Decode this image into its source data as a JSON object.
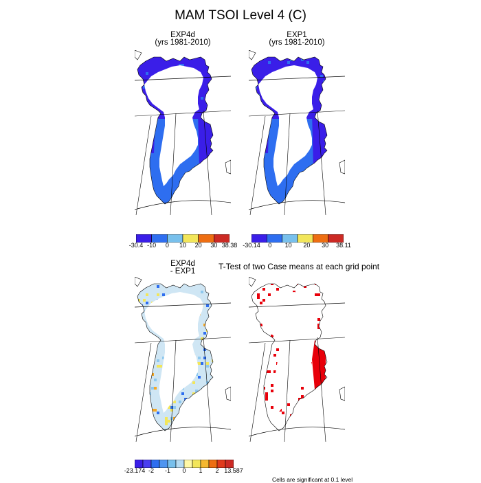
{
  "title": "MAM TSOI Level 4 (C)",
  "panels": {
    "exp4d": {
      "line1": "EXP4d",
      "line2": "(yrs 1981-2010)"
    },
    "exp1": {
      "line1": "EXP1",
      "line2": "(yrs 1981-2010)"
    },
    "diff": {
      "line1": "EXP4d",
      "line2": "- EXP1"
    },
    "ttest": {
      "title": "T-Test of two Case means at each grid point"
    }
  },
  "colorbars": {
    "exp4d": {
      "labels": [
        "-30.4",
        "-10",
        "0",
        "10",
        "20",
        "30",
        "38.38"
      ],
      "colors": [
        "#3a1ee8",
        "#2e6ef0",
        "#78c0ec",
        "#f2e65a",
        "#ee6e12",
        "#cc2a24"
      ]
    },
    "exp1": {
      "labels": [
        "-30.14",
        "0",
        "10",
        "20",
        "30",
        "38.11"
      ],
      "colors": [
        "#3a1ee8",
        "#2e6ef0",
        "#78c0ec",
        "#f2e65a",
        "#ee6e12",
        "#cc2a24"
      ]
    },
    "diff": {
      "labels": [
        "-23.174",
        "-2",
        "-1",
        "0",
        "1",
        "2",
        "13.587"
      ],
      "colors": [
        "#3a1ee8",
        "#4a3ef0",
        "#2e6ef0",
        "#4f95f0",
        "#78c0ec",
        "#b6dcf2",
        "#fff9a6",
        "#f2e65a",
        "#f5b830",
        "#ee6e12",
        "#e03a1c",
        "#cc2a24"
      ]
    }
  },
  "footnote": "Cells are significant at 0.1 level",
  "map_colors": {
    "cold": "#3a1ee8",
    "cool": "#2e6ef0",
    "light": "#8ec8ee",
    "pale": "#cfe6f4",
    "yellow": "#f2e65a",
    "orange": "#f5a623",
    "significant": "#e8000a"
  }
}
